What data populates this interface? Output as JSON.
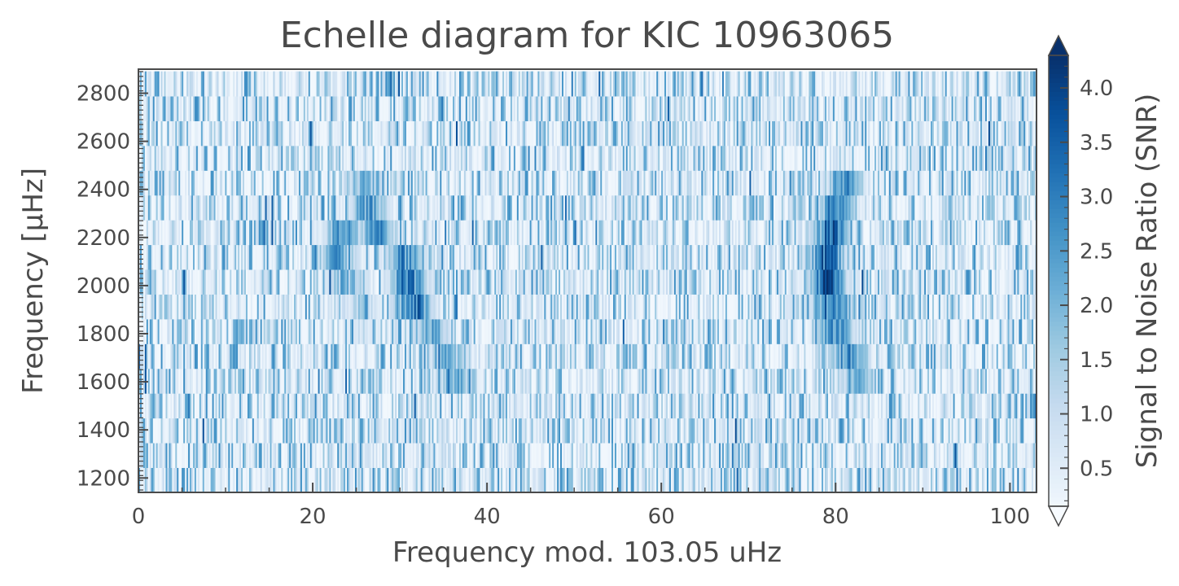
{
  "chart_data": {
    "type": "heatmap",
    "title": "Echelle diagram for KIC 10963065",
    "xlabel": "Frequency mod. 103.05 uHz",
    "ylabel": "Frequency [μHz]",
    "colorbar_label": "Signal to Noise Ratio (SNR)",
    "colormap": "Blues",
    "xlim": [
      0,
      103.05
    ],
    "ylim": [
      1140,
      2900
    ],
    "x_ticks": [
      0,
      20,
      40,
      60,
      80,
      100
    ],
    "y_ticks": [
      1200,
      1400,
      1600,
      1800,
      2000,
      2200,
      2400,
      2600,
      2800
    ],
    "colorbar_range": [
      0.15,
      4.3
    ],
    "colorbar_ticks": [
      0.5,
      1.0,
      1.5,
      2.0,
      2.5,
      3.0,
      3.5,
      4.0
    ],
    "colorbar_tick_labels": [
      "0.5",
      "1.0",
      "1.5",
      "2.0",
      "2.5",
      "3.0",
      "3.5",
      "4.0"
    ],
    "colorbar_extend": "both",
    "row_start_frequencies": [
      1140,
      1243,
      1346,
      1449,
      1552,
      1655,
      1758,
      1861,
      1964,
      2067,
      2170,
      2273,
      2376,
      2479,
      2582,
      2685,
      2788
    ],
    "ridges": [
      {
        "name": "ridge-1",
        "points": [
          [
            25.5,
            2440,
            2.2
          ],
          [
            26.5,
            2340,
            3.0
          ],
          [
            27.5,
            2230,
            3.2
          ],
          [
            30.5,
            2100,
            3.6
          ],
          [
            31.0,
            2010,
            3.8
          ],
          [
            31.5,
            1900,
            3.9
          ],
          [
            33.5,
            1790,
            3.0
          ],
          [
            35.5,
            1700,
            2.6
          ],
          [
            36.5,
            1600,
            2.5
          ]
        ]
      },
      {
        "name": "ridge-2",
        "points": [
          [
            23.5,
            2230,
            3.0
          ],
          [
            23.0,
            2110,
            2.8
          ],
          [
            24.0,
            1990,
            2.6
          ],
          [
            25.5,
            1880,
            2.0
          ]
        ]
      },
      {
        "name": "ridge-3",
        "points": [
          [
            81.0,
            2440,
            3.2
          ],
          [
            80.0,
            2330,
            3.6
          ],
          [
            79.5,
            2230,
            4.0
          ],
          [
            79.0,
            2130,
            4.2
          ],
          [
            79.0,
            2020,
            4.2
          ],
          [
            79.5,
            1900,
            4.0
          ],
          [
            80.0,
            1790,
            3.8
          ],
          [
            81.5,
            1690,
            3.4
          ],
          [
            82.5,
            1590,
            2.4
          ]
        ]
      }
    ]
  }
}
